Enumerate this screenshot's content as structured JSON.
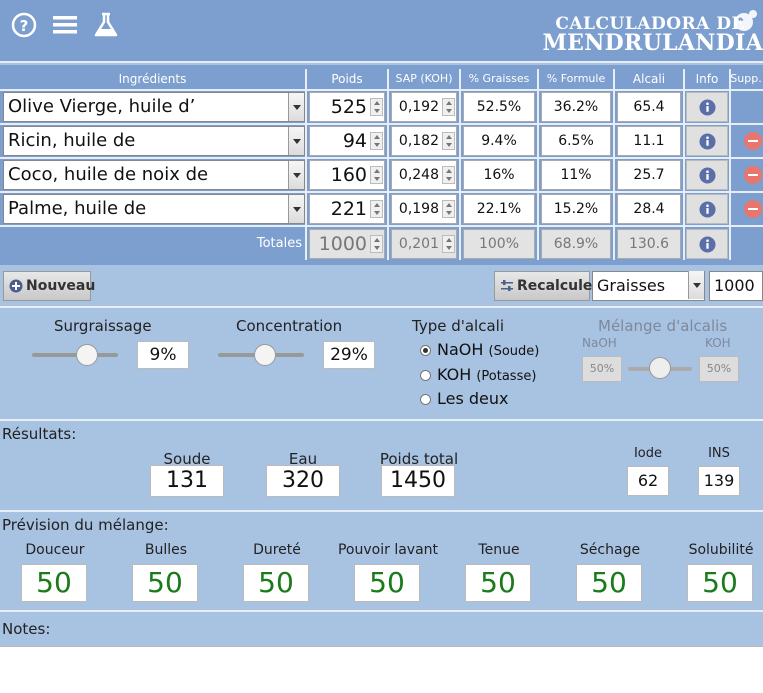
{
  "header": {
    "title_line1": "CALCULADORA DE",
    "title_line2": "MENDRULANDIA"
  },
  "table": {
    "columns": [
      "Ingrédients",
      "Poids",
      "SAP (KOH)",
      "% Graisses",
      "% Formule",
      "Alcali",
      "Info",
      "Supp."
    ],
    "rows": [
      {
        "name": "Olive Vierge, huile d’",
        "poids": "525",
        "sap": "0,192",
        "graisses": "52.5%",
        "formule": "36.2%",
        "alcali": "65.4"
      },
      {
        "name": "Ricin, huile de",
        "poids": "94",
        "sap": "0,182",
        "graisses": "9.4%",
        "formule": "6.5%",
        "alcali": "11.1"
      },
      {
        "name": "Coco, huile de noix de",
        "poids": "160",
        "sap": "0,248",
        "graisses": "16%",
        "formule": "11%",
        "alcali": "25.7"
      },
      {
        "name": "Palme, huile de",
        "poids": "221",
        "sap": "0,198",
        "graisses": "22.1%",
        "formule": "15.2%",
        "alcali": "28.4"
      }
    ],
    "totals": {
      "label": "Totales",
      "poids": "1000",
      "sap": "0,201",
      "graisses": "100%",
      "formule": "68.9%",
      "alcali": "130.6"
    }
  },
  "toolbar": {
    "new_label": "Nouveau",
    "recalc_label": "Recalculer",
    "mode_value": "Graisses",
    "total_value": "1000"
  },
  "params": {
    "surgraissage_label": "Surgraissage",
    "surgraissage_value": "9%",
    "concentration_label": "Concentration",
    "concentration_value": "29%",
    "alcali_type_label": "Type d'alcali",
    "options": [
      {
        "label": "NaOH",
        "sub": "(Soude)",
        "selected": true
      },
      {
        "label": "KOH",
        "sub": "(Potasse)",
        "selected": false
      },
      {
        "label": "Les deux",
        "sub": "",
        "selected": false
      }
    ],
    "melange_label": "Mélange d'alcalis",
    "naoh_label": "NaOH",
    "koh_label": "KOH",
    "naoh_pct": "50%",
    "koh_pct": "50%"
  },
  "results": {
    "title": "Résultats:",
    "soude_label": "Soude",
    "soude_value": "131",
    "eau_label": "Eau",
    "eau_value": "320",
    "poids_label": "Poids total",
    "poids_value": "1450",
    "iode_label": "Iode",
    "iode_value": "62",
    "ins_label": "INS",
    "ins_value": "139"
  },
  "prevision": {
    "title": "Prévision du mélange:",
    "items": [
      {
        "label": "Douceur",
        "value": "50"
      },
      {
        "label": "Bulles",
        "value": "50"
      },
      {
        "label": "Dureté",
        "value": "50"
      },
      {
        "label": "Pouvoir lavant",
        "value": "50"
      },
      {
        "label": "Tenue",
        "value": "50"
      },
      {
        "label": "Séchage",
        "value": "50"
      },
      {
        "label": "Solubilité",
        "value": "50"
      }
    ]
  },
  "notes": {
    "title": "Notes:",
    "value": ""
  },
  "colors": {
    "header_bg": "#7d9fcf",
    "panel_bg": "#a8c2e2",
    "value_green": "#1b7a1b",
    "delete_red": "#e8766f"
  }
}
